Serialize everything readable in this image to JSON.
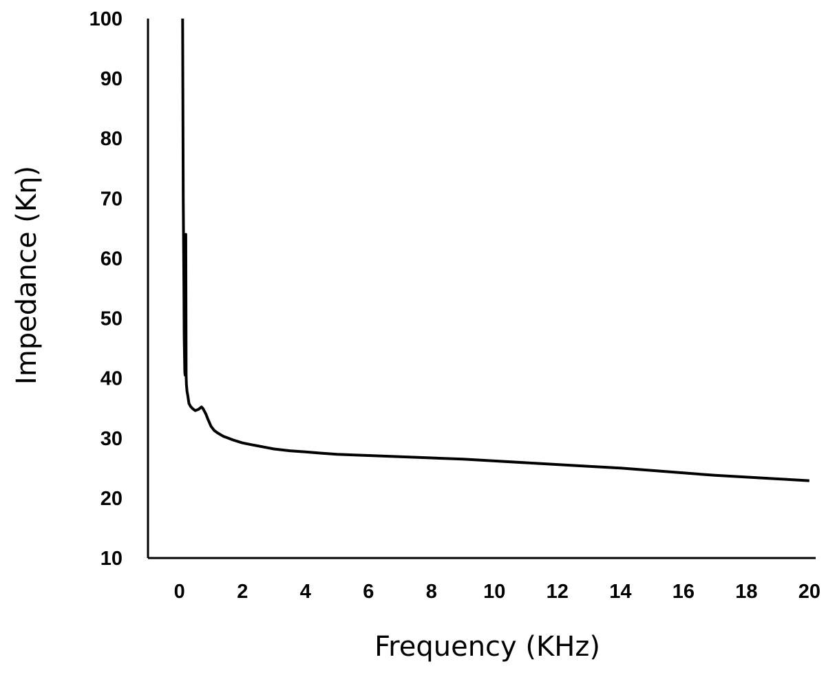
{
  "chart_data": {
    "type": "line",
    "title": "",
    "xlabel": "Frequency (KHz)",
    "ylabel": "Impedance (Kη)",
    "xlim": [
      -1,
      20.2
    ],
    "ylim": [
      10,
      100
    ],
    "x_ticks": [
      0,
      2,
      4,
      6,
      8,
      10,
      12,
      14,
      16,
      18,
      20
    ],
    "y_ticks": [
      10,
      20,
      30,
      40,
      50,
      60,
      70,
      80,
      90,
      100
    ],
    "grid": false,
    "legend": "none",
    "line_color": "#000000",
    "series": [
      {
        "x": [
          0.1,
          0.12,
          0.14,
          0.15,
          0.17,
          0.18,
          0.2,
          0.21,
          0.22,
          0.24,
          0.26,
          0.28,
          0.3,
          0.35,
          0.4,
          0.45,
          0.5,
          0.6,
          0.7,
          0.75,
          0.8,
          0.85,
          0.9,
          0.95,
          1.0,
          1.1,
          1.2,
          1.3,
          1.4,
          1.5,
          1.7,
          2.0,
          2.3,
          2.6,
          3.0,
          3.5,
          4.0,
          4.5,
          5.0,
          6.0,
          7.0,
          8.0,
          9.0,
          10.0,
          11.0,
          12.0,
          13.0,
          14.0,
          15.0,
          16.0,
          17.0,
          18.0,
          19.0,
          20.0
        ],
        "y": [
          100,
          70,
          55,
          47,
          41,
          40.5,
          64,
          40.5,
          39,
          37.8,
          37.2,
          36.5,
          35.8,
          35.3,
          35.0,
          34.8,
          34.6,
          34.8,
          35.2,
          34.9,
          34.4,
          33.9,
          33.2,
          32.6,
          32.0,
          31.3,
          30.9,
          30.6,
          30.3,
          30.1,
          29.7,
          29.2,
          28.9,
          28.6,
          28.2,
          27.9,
          27.7,
          27.5,
          27.3,
          27.1,
          26.9,
          26.7,
          26.5,
          26.2,
          25.9,
          25.6,
          25.3,
          25.0,
          24.6,
          24.2,
          23.8,
          23.5,
          23.2,
          22.9
        ]
      }
    ]
  }
}
